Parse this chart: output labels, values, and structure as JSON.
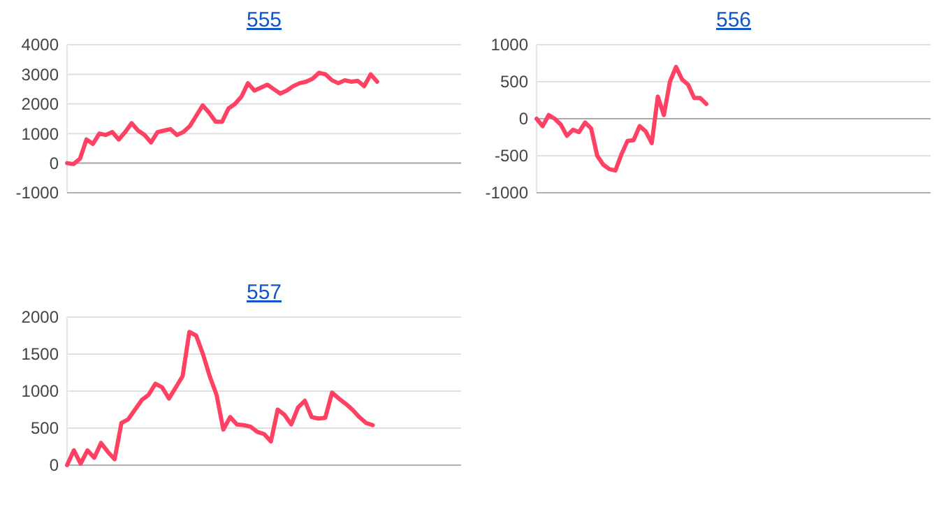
{
  "chart_data": [
    {
      "type": "line",
      "title": "555",
      "categories": [
        null,
        null,
        null,
        null,
        null,
        null,
        null,
        null,
        null,
        null,
        null,
        null,
        null,
        null,
        null,
        null,
        null,
        null,
        null,
        null,
        null,
        null,
        null,
        null,
        null,
        null,
        null,
        null,
        null,
        null,
        null,
        null,
        null,
        null,
        null,
        null,
        null,
        null,
        null,
        null,
        null,
        null,
        null,
        null,
        null,
        null,
        null,
        null,
        null,
        null,
        null,
        null,
        null,
        null,
        null,
        null,
        null,
        null,
        null,
        null,
        null,
        null
      ],
      "series": [
        {
          "color": "#ff4163",
          "values": [
            0,
            -30,
            150,
            800,
            650,
            1000,
            950,
            1050,
            800,
            1050,
            1350,
            1100,
            950,
            700,
            1050,
            1100,
            1150,
            950,
            1050,
            1250,
            1600,
            1950,
            1700,
            1400,
            1400,
            1850,
            2000,
            2250,
            2700,
            2450,
            2550,
            2650,
            2500,
            2350,
            2450,
            2600,
            2700,
            2750,
            2850,
            3050,
            3000,
            2800,
            2700,
            2800,
            2750,
            2780,
            2600,
            3000,
            2750,
            null,
            null,
            null,
            null,
            null,
            null,
            null,
            null,
            null,
            null,
            null,
            null,
            null
          ]
        }
      ],
      "ylim": [
        -1000,
        4000
      ],
      "yticks": [
        -1000,
        0,
        1000,
        2000,
        3000,
        4000
      ],
      "grid": "y",
      "marker": "none",
      "line_style": "solid"
    },
    {
      "type": "line",
      "title": "556",
      "categories": [
        null,
        null,
        null,
        null,
        null,
        null,
        null,
        null,
        null,
        null,
        null,
        null,
        null,
        null,
        null,
        null,
        null,
        null,
        null,
        null,
        null,
        null,
        null,
        null,
        null,
        null,
        null,
        null,
        null,
        null,
        null,
        null,
        null,
        null,
        null,
        null,
        null,
        null,
        null,
        null,
        null,
        null,
        null,
        null,
        null,
        null,
        null,
        null,
        null,
        null,
        null,
        null,
        null,
        null,
        null,
        null,
        null,
        null,
        null,
        null,
        null,
        null,
        null,
        null,
        null,
        null
      ],
      "series": [
        {
          "color": "#ff4163",
          "values": [
            0,
            -100,
            50,
            0,
            -80,
            -230,
            -150,
            -180,
            -50,
            -130,
            -500,
            -620,
            -680,
            -700,
            -480,
            -300,
            -290,
            -100,
            -170,
            -330,
            300,
            50,
            500,
            700,
            530,
            460,
            280,
            280,
            200,
            null,
            null,
            null,
            null,
            null,
            null,
            null,
            null,
            null,
            null,
            null,
            null,
            null,
            null,
            null,
            null,
            null,
            null,
            null,
            null,
            null,
            null,
            null,
            null,
            null,
            null,
            null,
            null,
            null,
            null,
            null,
            null,
            null,
            null,
            null,
            null,
            null
          ]
        }
      ],
      "ylim": [
        -1000,
        1000
      ],
      "yticks": [
        -1000,
        -500,
        0,
        500,
        1000
      ],
      "grid": "y",
      "marker": "none",
      "line_style": "solid"
    },
    {
      "type": "line",
      "title": "557",
      "categories": [
        null,
        null,
        null,
        null,
        null,
        null,
        null,
        null,
        null,
        null,
        null,
        null,
        null,
        null,
        null,
        null,
        null,
        null,
        null,
        null,
        null,
        null,
        null,
        null,
        null,
        null,
        null,
        null,
        null,
        null,
        null,
        null,
        null,
        null,
        null,
        null,
        null,
        null,
        null,
        null,
        null,
        null,
        null,
        null,
        null,
        null,
        null,
        null,
        null,
        null,
        null,
        null,
        null,
        null,
        null,
        null,
        null,
        null,
        null
      ],
      "series": [
        {
          "color": "#ff4163",
          "values": [
            0,
            200,
            20,
            200,
            100,
            300,
            180,
            80,
            570,
            620,
            750,
            880,
            950,
            1100,
            1050,
            900,
            1050,
            1200,
            1800,
            1750,
            1500,
            1200,
            950,
            480,
            650,
            550,
            540,
            520,
            450,
            420,
            320,
            750,
            680,
            550,
            780,
            870,
            650,
            630,
            640,
            980,
            900,
            830,
            750,
            650,
            570,
            540,
            null,
            null,
            null,
            null,
            null,
            null,
            null,
            null,
            null,
            null,
            null,
            null,
            null
          ]
        }
      ],
      "ylim": [
        0,
        2000
      ],
      "yticks": [
        0,
        500,
        1000,
        1500,
        2000
      ],
      "grid": "y",
      "marker": "none",
      "line_style": "solid"
    }
  ]
}
